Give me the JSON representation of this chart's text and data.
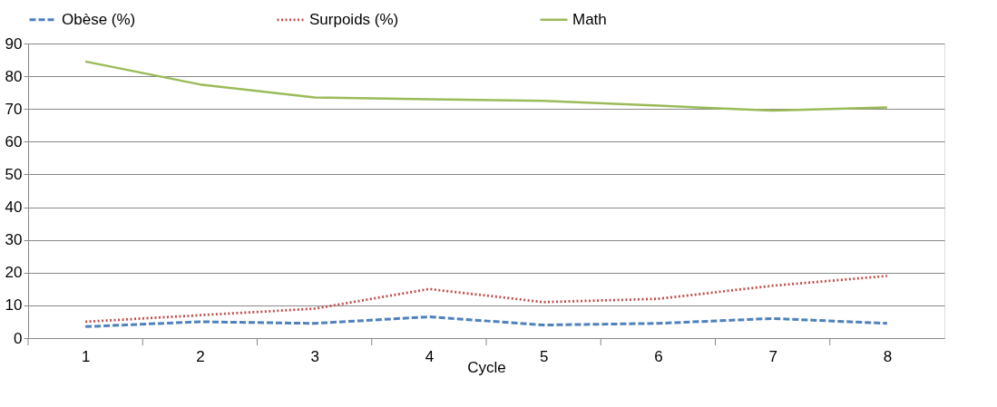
{
  "chart_data": {
    "type": "line",
    "xlabel": "Cycle",
    "categories": [
      "1",
      "2",
      "3",
      "4",
      "5",
      "6",
      "7",
      "8"
    ],
    "series": [
      {
        "name": "Obèse (%)",
        "color": "#4f81bd",
        "line_style": "dashed",
        "values": [
          3.5,
          5,
          4.5,
          6.5,
          4,
          4.5,
          6,
          4.5
        ]
      },
      {
        "name": "Surpoids (%)",
        "color": "#c0504d",
        "line_style": "dotted",
        "values": [
          5,
          7,
          9,
          15,
          11,
          12,
          16,
          19
        ]
      },
      {
        "name": "Math",
        "color": "#9bbb59",
        "line_style": "solid",
        "values": [
          84.5,
          77.5,
          73.5,
          73,
          72.5,
          71,
          69.5,
          70.5
        ]
      }
    ],
    "ylim": [
      0,
      90
    ],
    "yticks": [
      0,
      10,
      20,
      30,
      40,
      50,
      60,
      70,
      80,
      90
    ],
    "grid": "y",
    "legend": "top",
    "marker": "none"
  }
}
